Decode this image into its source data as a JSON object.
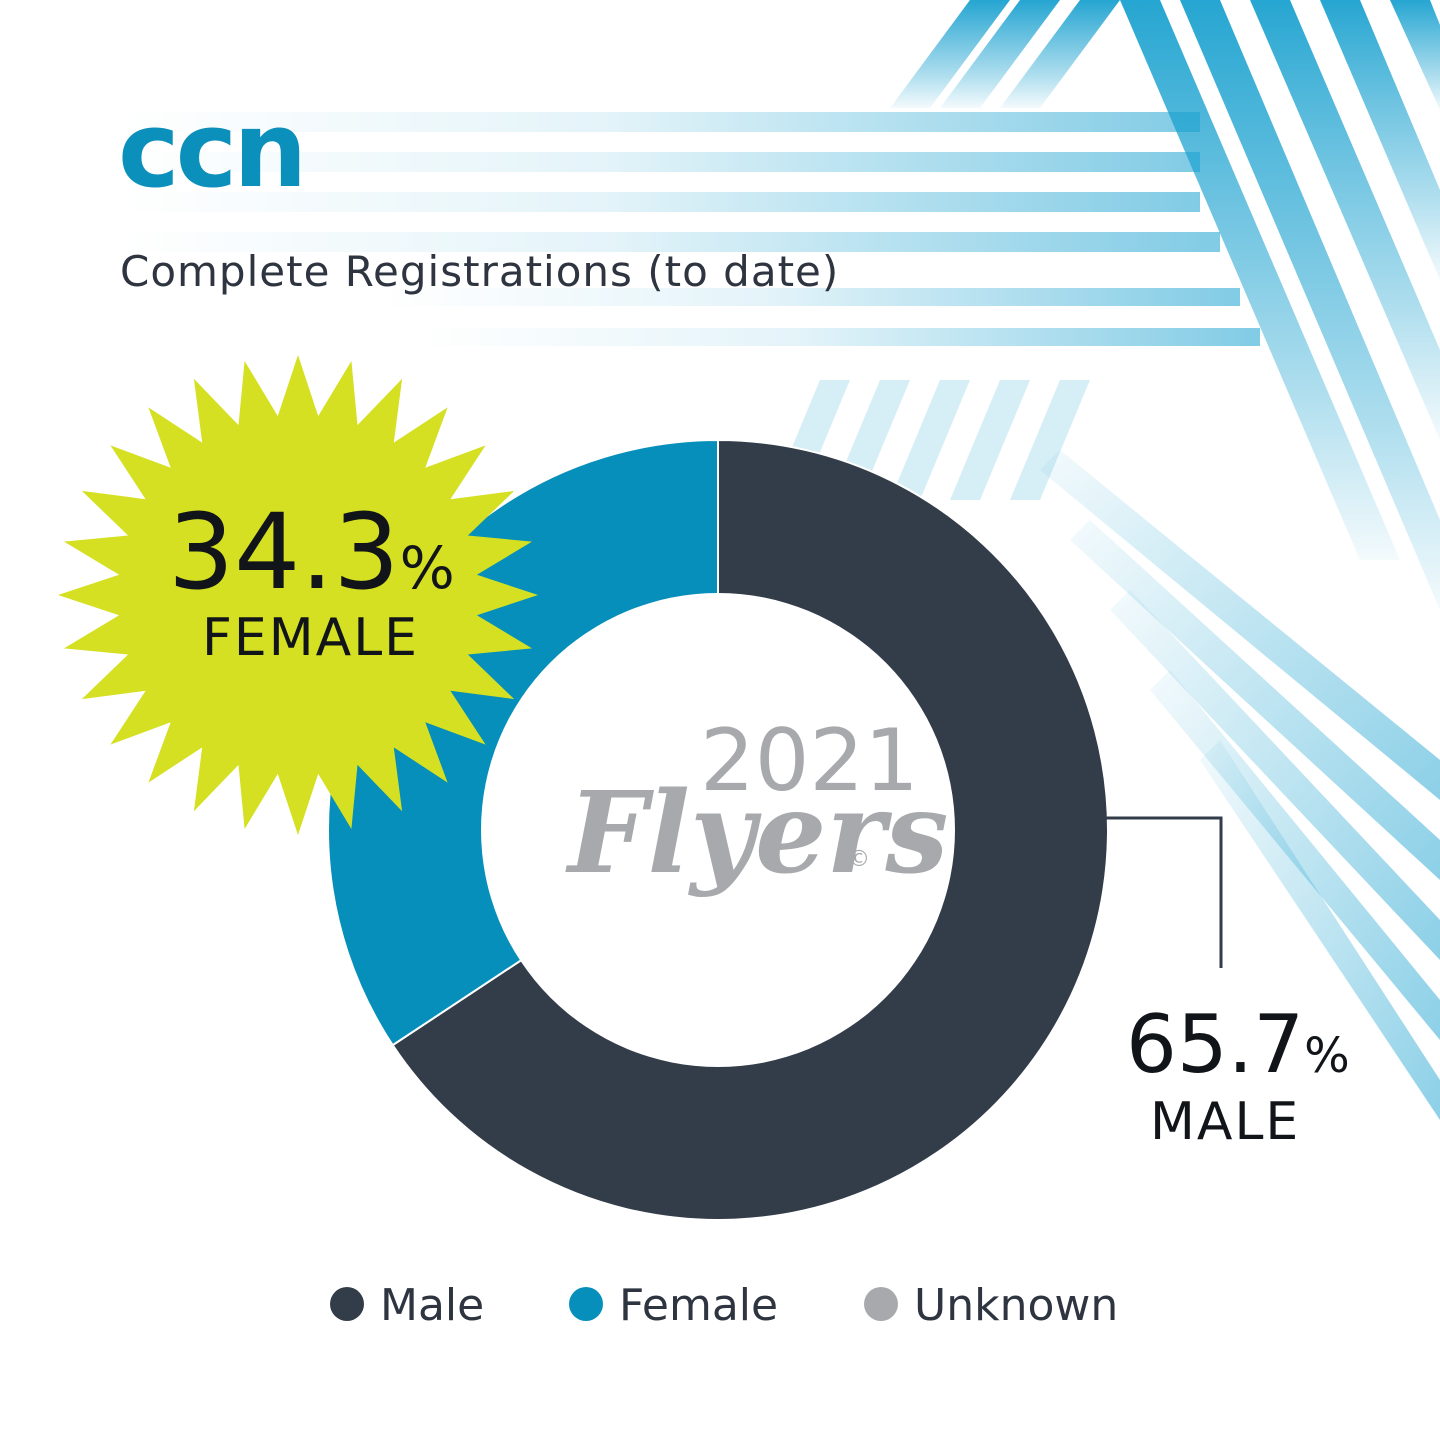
{
  "brand": {
    "logo_text": "ccn",
    "logo_color": "#0b8fbb"
  },
  "title": "Complete Registrations (to date)",
  "event_mark": {
    "year": "2021",
    "name": "Flyers",
    "copyright": "©"
  },
  "callouts": {
    "female": {
      "value": "34.3",
      "unit": "%",
      "label": "FEMALE"
    },
    "male": {
      "value": "65.7",
      "unit": "%",
      "label": "MALE"
    }
  },
  "legend": [
    {
      "label": "Male",
      "color": "#333c49"
    },
    {
      "label": "Female",
      "color": "#058fba"
    },
    {
      "label": "Unknown",
      "color": "#a7a9ac"
    }
  ],
  "colors": {
    "male": "#333c49",
    "female": "#058fba",
    "unknown": "#a7a9ac",
    "burst": "#d4e021",
    "text_dark": "#2e3440",
    "stripe": "#1aa1cf"
  },
  "chart_data": {
    "type": "pie",
    "donut": true,
    "title": "Complete Registrations (to date)",
    "categories": [
      "Male",
      "Female",
      "Unknown"
    ],
    "values": [
      65.7,
      34.3,
      0
    ],
    "unit": "%",
    "legend_position": "bottom-center"
  }
}
